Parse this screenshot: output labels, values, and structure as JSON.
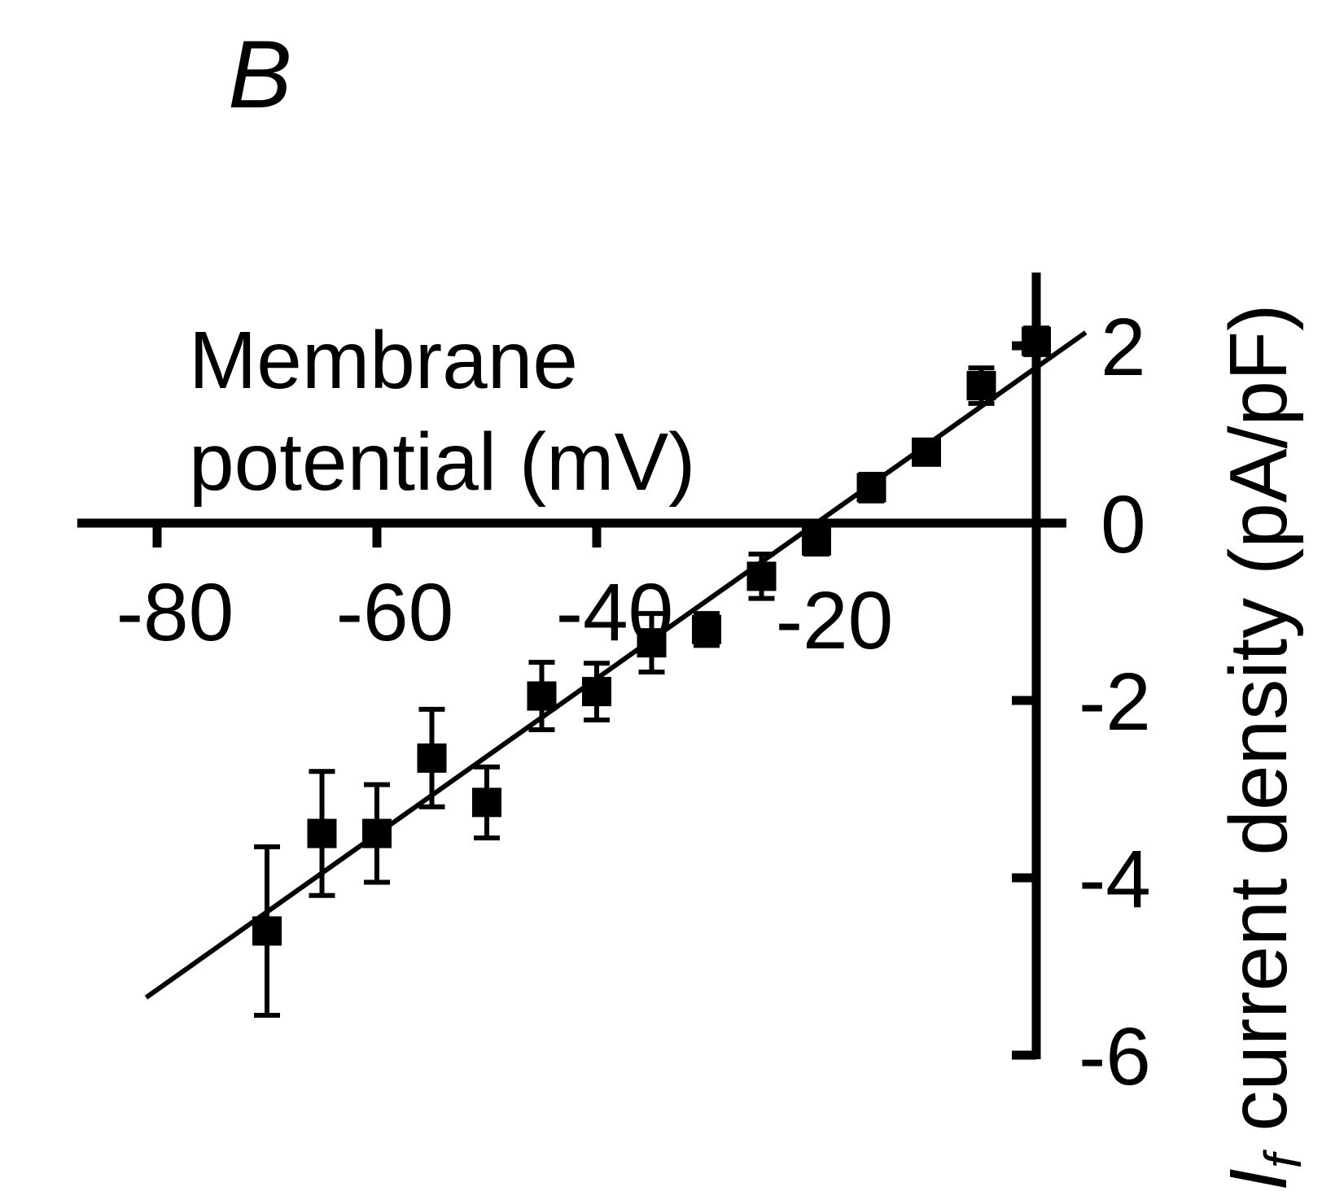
{
  "panel_label": "B",
  "chart_data": {
    "type": "scatter",
    "xlabel_line1": "Membrane",
    "xlabel_line2": "potential (mV)",
    "ylabel_main": "I",
    "ylabel_sub": "f",
    "ylabel_rest": " current density (pA/pF)",
    "xlim": [
      -90,
      0
    ],
    "ylim": [
      -6,
      2.8
    ],
    "x_ticks": [
      -80,
      -60,
      -40,
      -20
    ],
    "x_tick_labels": [
      "-80",
      "-60",
      "-40",
      "-20"
    ],
    "y_ticks": [
      2,
      0,
      -2,
      -4,
      -6
    ],
    "y_tick_labels": [
      "2",
      "0",
      "-2",
      "-4",
      "-6"
    ],
    "series": [
      {
        "points": [
          {
            "x": -70,
            "y": -4.6,
            "err_low": 0.95,
            "err_high": 0.95
          },
          {
            "x": -65,
            "y": -3.5,
            "err_low": 0.7,
            "err_high": 0.7
          },
          {
            "x": -60,
            "y": -3.5,
            "err_low": 0.55,
            "err_high": 0.55
          },
          {
            "x": -55,
            "y": -2.65,
            "err_low": 0.55,
            "err_high": 0.55
          },
          {
            "x": -50,
            "y": -3.15,
            "err_low": 0.4,
            "err_high": 0.4
          },
          {
            "x": -45,
            "y": -1.95,
            "err_low": 0.38,
            "err_high": 0.38
          },
          {
            "x": -40,
            "y": -1.9,
            "err_low": 0.32,
            "err_high": 0.32
          },
          {
            "x": -35,
            "y": -1.35,
            "err_low": 0.33,
            "err_high": 0.33
          },
          {
            "x": -30,
            "y": -1.2,
            "err_low": 0.18,
            "err_high": 0.18
          },
          {
            "x": -25,
            "y": -0.6,
            "err_low": 0.25,
            "err_high": 0.25
          },
          {
            "x": -20,
            "y": -0.2,
            "err_low": 0.15,
            "err_high": 0.15
          },
          {
            "x": -15,
            "y": 0.4,
            "err_low": 0.15,
            "err_high": 0.15
          },
          {
            "x": -10,
            "y": 0.8,
            "err_low": 0.1,
            "err_high": 0.1
          },
          {
            "x": -5,
            "y": 1.55,
            "err_low": 0.2,
            "err_high": 0.2
          },
          {
            "x": 0,
            "y": 2.05,
            "err_low": 0.15,
            "err_high": 0.15
          }
        ]
      }
    ],
    "fit_line": {
      "x": [
        -81,
        4.5
      ],
      "y": [
        -5.35,
        2.15
      ]
    }
  }
}
